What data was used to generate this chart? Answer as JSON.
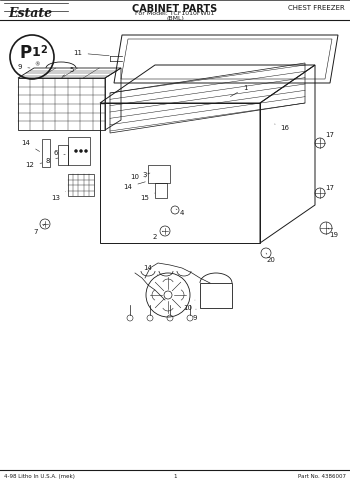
{
  "title": "CABINET PARTS",
  "subtitle_line1": "For Model: TCF1010FW01",
  "subtitle_line2": "(BML)",
  "brand": "Estate",
  "type_label": "CHEST FREEZER",
  "footer_left": "4-98 Litho In U.S.A. (mek)",
  "footer_center": "1",
  "footer_right": "Part No. 4386007",
  "bg_color": "#ffffff",
  "line_color": "#1a1a1a",
  "gray_color": "#888888"
}
